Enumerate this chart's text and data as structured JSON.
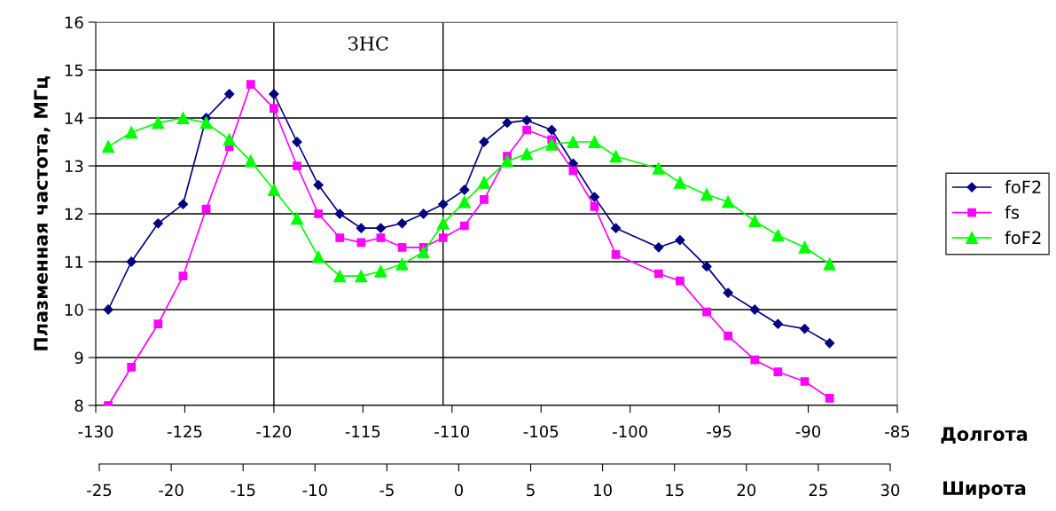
{
  "chart_data": {
    "type": "line",
    "x": [
      -129.3,
      -128.0,
      -126.5,
      -125.1,
      -123.8,
      -122.5,
      -121.3,
      -120.0,
      -118.7,
      -117.5,
      -116.3,
      -115.1,
      -114.0,
      -112.8,
      -111.6,
      -110.5,
      -109.3,
      -108.2,
      -106.9,
      -105.8,
      -104.4,
      -103.2,
      -102.0,
      -100.8,
      -98.4,
      -97.2,
      -95.7,
      -94.5,
      -93.0,
      -91.7,
      -90.2,
      -88.8
    ],
    "series": [
      {
        "name": "foF2",
        "color": "#000080",
        "marker": "diamond",
        "values": [
          10.0,
          11.0,
          11.8,
          12.2,
          14.0,
          14.5,
          null,
          14.5,
          13.5,
          12.6,
          12.0,
          11.7,
          11.7,
          11.8,
          12.0,
          12.2,
          12.5,
          13.5,
          13.9,
          13.95,
          13.75,
          13.05,
          12.35,
          11.7,
          11.3,
          11.45,
          10.9,
          10.35,
          10.0,
          9.7,
          9.6,
          9.3
        ]
      },
      {
        "name": "fs",
        "color": "#ff00ff",
        "marker": "square",
        "values": [
          8.0,
          8.8,
          9.7,
          10.7,
          12.1,
          13.4,
          14.7,
          14.2,
          13.0,
          12.0,
          11.5,
          11.4,
          11.5,
          11.3,
          11.3,
          11.5,
          11.75,
          12.3,
          13.2,
          13.75,
          13.55,
          12.9,
          12.15,
          11.15,
          10.75,
          10.6,
          9.95,
          9.45,
          8.95,
          8.7,
          8.5,
          8.15
        ]
      },
      {
        "name": "foF2",
        "color": "#00ff00",
        "marker": "triangle",
        "values": [
          13.4,
          13.7,
          13.9,
          14.0,
          13.9,
          13.55,
          13.1,
          12.5,
          11.9,
          11.1,
          10.7,
          10.7,
          10.8,
          10.95,
          11.2,
          11.8,
          12.25,
          12.65,
          13.1,
          13.25,
          13.45,
          13.5,
          13.5,
          13.2,
          12.95,
          12.65,
          12.4,
          12.25,
          11.85,
          11.55,
          11.3,
          10.95
        ]
      }
    ],
    "xlim": [
      -130,
      -85
    ],
    "xticks": [
      -130,
      -125,
      -120,
      -115,
      -110,
      -105,
      -100,
      -95,
      -90,
      -85
    ],
    "ylim": [
      8,
      16
    ],
    "yticks": [
      8,
      9,
      10,
      11,
      12,
      13,
      14,
      15,
      16
    ],
    "x2lim": [
      -25,
      30
    ],
    "x2ticks": [
      -25,
      -20,
      -15,
      -10,
      -5,
      0,
      5,
      10,
      15,
      20,
      25,
      30
    ],
    "xlabel": "Долгота",
    "x2label": "Широта",
    "ylabel": "Плазменная частота, МГц",
    "ref_lines": [
      {
        "axis": "x",
        "value": -120,
        "color": "#000000"
      },
      {
        "axis": "x",
        "value": -110.5,
        "color": "#000000"
      }
    ],
    "annotations": [
      "ЗНС"
    ],
    "grid": "y",
    "legend": "right",
    "line_style": "solid"
  }
}
